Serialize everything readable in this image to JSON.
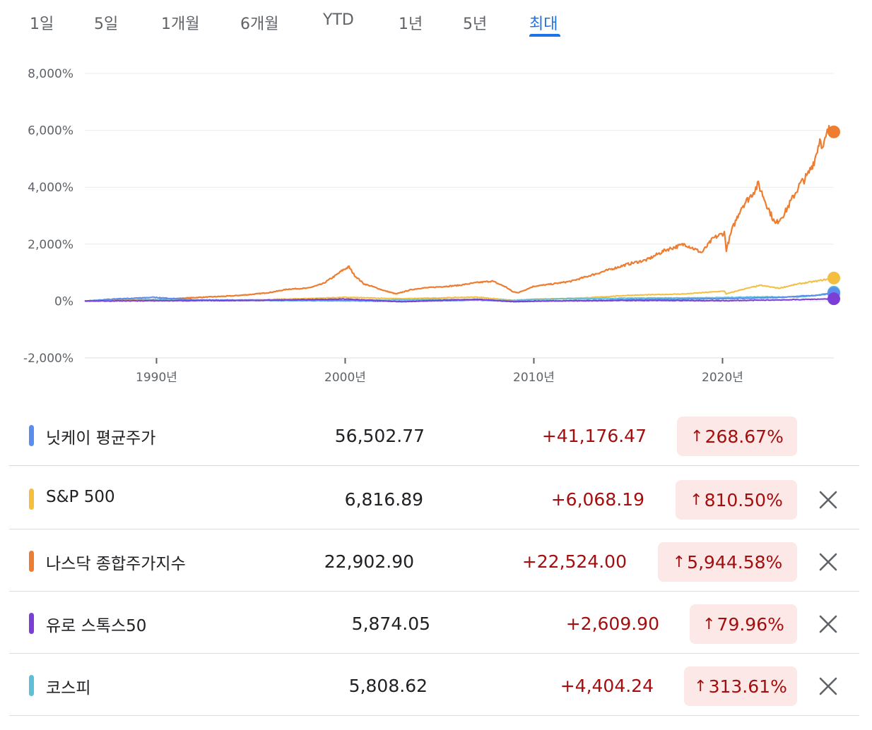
{
  "tabs": [
    {
      "label": "1일"
    },
    {
      "label": "5일"
    },
    {
      "label": "1개월"
    },
    {
      "label": "6개월"
    },
    {
      "label": "YTD"
    },
    {
      "label": "1년"
    },
    {
      "label": "5년"
    },
    {
      "label": "최대",
      "active": true
    }
  ],
  "chart_data": {
    "type": "line",
    "ylim": [
      -2000,
      8000
    ],
    "xlim": [
      1986.2,
      2025.9
    ],
    "y_ticks": [
      "8,000%",
      "6,000%",
      "4,000%",
      "2,000%",
      "0%",
      "-2,000%"
    ],
    "y_tick_values": [
      8000,
      6000,
      4000,
      2000,
      0,
      -2000
    ],
    "x_ticks": [
      "1990년",
      "2000년",
      "2010년",
      "2020년"
    ],
    "x_tick_values": [
      1990,
      2000,
      2010,
      2020
    ],
    "grid": true,
    "series": [
      {
        "name": "나스닥 종합주가지수",
        "color": "#ed7d31",
        "x": [
          1986.2,
          1988,
          1990,
          1992,
          1994,
          1995,
          1996,
          1997,
          1998,
          1998.8,
          1999.5,
          1999.9,
          2000.2,
          2000.5,
          2001,
          2001.5,
          2002,
          2002.7,
          2003.5,
          2004,
          2005,
          2006,
          2007,
          2007.8,
          2008.5,
          2008.9,
          2009.2,
          2010,
          2011,
          2012,
          2013,
          2014,
          2015,
          2016,
          2017,
          2018,
          2018.9,
          2019.5,
          2020.1,
          2020.2,
          2020.5,
          2021,
          2021.5,
          2021.9,
          2022.4,
          2022.8,
          2023.3,
          2023.7,
          2024.1,
          2024.5,
          2024.9,
          2025.2,
          2025.3,
          2025.6,
          2025.9
        ],
        "values": [
          0,
          40,
          50,
          120,
          180,
          230,
          300,
          420,
          450,
          600,
          900,
          1100,
          1200,
          900,
          600,
          500,
          380,
          250,
          400,
          450,
          500,
          550,
          650,
          700,
          500,
          320,
          300,
          520,
          600,
          700,
          900,
          1100,
          1300,
          1450,
          1800,
          2000,
          1700,
          2200,
          2400,
          1800,
          2500,
          3300,
          3700,
          4100,
          3300,
          2700,
          3100,
          3600,
          4100,
          4400,
          5000,
          5800,
          5300,
          6000,
          5945
        ]
      },
      {
        "name": "S&P 500",
        "color": "#f4be3f",
        "x": [
          1986.2,
          1990,
          1995,
          1997.5,
          2000,
          2003,
          2007,
          2008.9,
          2010,
          2013,
          2015,
          2018,
          2020.1,
          2020.2,
          2021,
          2022,
          2023,
          2024,
          2025,
          2025.9
        ],
        "values": [
          0,
          20,
          40,
          80,
          130,
          80,
          140,
          20,
          60,
          120,
          200,
          250,
          350,
          250,
          400,
          550,
          450,
          600,
          700,
          810
        ]
      },
      {
        "name": "코스피",
        "color": "#5ec0d6",
        "x": [
          1986.2,
          1990,
          1995,
          2000,
          2005,
          2008.9,
          2010,
          2015,
          2020,
          2022,
          2024,
          2025,
          2025.9
        ],
        "values": [
          0,
          30,
          20,
          10,
          60,
          20,
          60,
          100,
          120,
          150,
          140,
          200,
          314
        ]
      },
      {
        "name": "닛케이 평균주가",
        "color": "#5b8def",
        "x": [
          1986.2,
          1988,
          1989.9,
          1992,
          1995,
          2000,
          2003,
          2007,
          2008.9,
          2010,
          2015,
          2020,
          2023,
          2024,
          2025,
          2025.9
        ],
        "values": [
          0,
          80,
          130,
          40,
          30,
          20,
          -20,
          40,
          -20,
          -10,
          50,
          80,
          120,
          170,
          200,
          269
        ]
      },
      {
        "name": "유로 스톡스50",
        "color": "#7b3fd8",
        "x": [
          1986.2,
          1990,
          1995,
          2000,
          2003,
          2007,
          2008.9,
          2010,
          2015,
          2020,
          2022,
          2024,
          2025.9
        ],
        "values": [
          0,
          10,
          20,
          70,
          -20,
          60,
          -20,
          0,
          20,
          10,
          30,
          50,
          80
        ]
      }
    ],
    "end_labels": []
  },
  "rows": [
    {
      "name": "닛케이 평균주가",
      "price": "56,502.77",
      "change": "+41,176.47",
      "pct": "268.67%",
      "color": "#5b8def",
      "removable": false
    },
    {
      "name": "S&P 500",
      "price": "6,816.89",
      "change": "+6,068.19",
      "pct": "810.50%",
      "color": "#f4be3f",
      "removable": true
    },
    {
      "name": "나스닥 종합주가지수",
      "price": "22,902.90",
      "change": "+22,524.00",
      "pct": "5,944.58%",
      "color": "#ed7d31",
      "removable": true
    },
    {
      "name": "유로 스톡스50",
      "price": "5,874.05",
      "change": "+2,609.90",
      "pct": "79.96%",
      "color": "#7b3fd8",
      "removable": true
    },
    {
      "name": "코스피",
      "price": "5,808.62",
      "change": "+4,404.24",
      "pct": "313.61%",
      "color": "#5ec0d6",
      "removable": true
    }
  ],
  "arrow": "↑",
  "icons": {
    "remove": "close-icon",
    "up": "arrow-up-icon"
  }
}
